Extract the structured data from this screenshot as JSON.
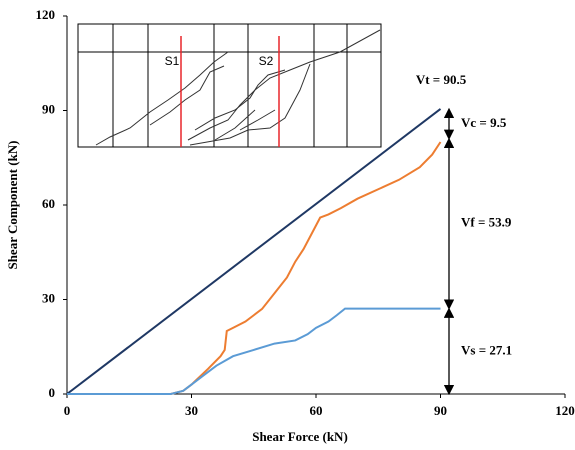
{
  "chart_data": {
    "type": "line",
    "xlabel": "Shear Force (kN)",
    "ylabel": "Shear Component (kN)",
    "xlim": [
      0,
      120
    ],
    "xticks": [
      0,
      30,
      60,
      90,
      120
    ],
    "ylim": [
      0,
      120
    ],
    "yticks": [
      0,
      30,
      60,
      90,
      120
    ],
    "grid": false,
    "series": [
      {
        "color": "#1f3864",
        "x": [
          0,
          90
        ],
        "values": [
          0,
          90.5
        ]
      },
      {
        "color": "#ed7d31",
        "x": [
          0,
          25,
          28,
          30,
          34,
          37,
          38,
          38.5,
          40,
          43,
          45,
          47,
          50,
          53,
          55,
          57,
          59,
          61,
          63,
          66,
          70,
          75,
          80,
          85,
          88,
          90
        ],
        "values": [
          0,
          0,
          1,
          3,
          8,
          12,
          14,
          20,
          21,
          23,
          25,
          27,
          32,
          37,
          42,
          46,
          51,
          56,
          57,
          59,
          62,
          65,
          68,
          72,
          76,
          80
        ]
      },
      {
        "color": "#5b9bd5",
        "x": [
          0,
          25,
          28,
          30,
          33,
          36,
          40,
          45,
          50,
          55,
          58,
          60,
          63,
          65,
          67,
          90
        ],
        "values": [
          0,
          0,
          1,
          3,
          6,
          9,
          12,
          14,
          16,
          17,
          19,
          21,
          23,
          25,
          27.1,
          27.1
        ]
      }
    ],
    "total": {
      "label": "Vt = 90.5",
      "value": 90.5
    },
    "segments": [
      {
        "label": "Vs = 27.1",
        "value": 27.1
      },
      {
        "label": "Vf = 53.9",
        "value": 53.9
      },
      {
        "label": "Vc = 9.5",
        "value": 9.5
      }
    ],
    "inset_labels": [
      "S1",
      "S2"
    ]
  }
}
